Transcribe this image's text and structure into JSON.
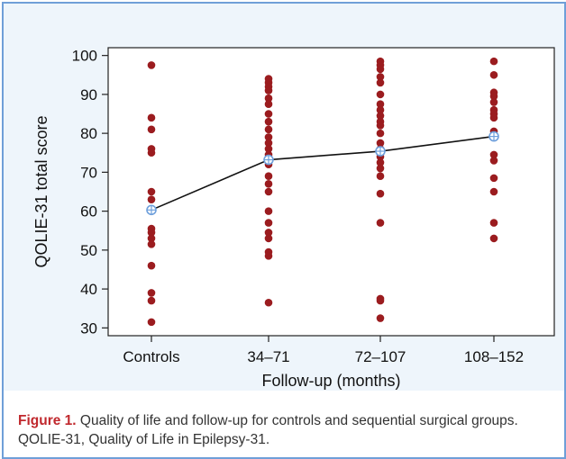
{
  "chart_data": {
    "type": "scatter",
    "title": "",
    "xlabel": "Follow-up (months)",
    "ylabel": "QOLIE-31 total score",
    "categories": [
      "Controls",
      "34–71",
      "72–107",
      "108–152"
    ],
    "ylim": [
      28,
      102
    ],
    "yticks": [
      30,
      40,
      50,
      60,
      70,
      80,
      90,
      100
    ],
    "grid": false,
    "legend": "none",
    "series": [
      {
        "kind": "points",
        "color": "#9b1c1f",
        "values": [
          [
            97.5,
            84,
            81,
            76,
            75,
            65,
            63,
            60.5,
            60,
            55.5,
            54.5,
            53,
            51.5,
            46,
            39,
            37,
            31.5
          ],
          [
            94,
            93,
            92,
            91,
            89,
            87.5,
            85,
            83,
            81,
            79,
            77.5,
            76,
            74.5,
            73,
            72,
            69,
            67,
            65,
            60,
            57,
            54.5,
            53,
            49.5,
            48.5,
            36.5
          ],
          [
            98.5,
            97.5,
            96.5,
            94.5,
            93,
            90,
            87.5,
            86,
            84.5,
            83,
            82,
            80,
            77.5,
            76,
            74,
            72.5,
            71,
            69,
            64.5,
            57,
            37.5,
            37,
            32.5
          ],
          [
            98.5,
            95,
            90.5,
            89.5,
            88,
            86,
            85,
            84,
            80.5,
            74.5,
            73,
            68.5,
            65,
            57,
            53
          ]
        ]
      },
      {
        "kind": "mean-line",
        "color": "#111111",
        "marker_color": "#6fa0dc",
        "values": [
          60.3,
          73.2,
          75.4,
          79.2
        ]
      }
    ]
  },
  "caption": {
    "label": "Figure 1.",
    "text": "Quality of life and follow-up for controls and sequential surgical groups. QOLIE-31, Quality of Life in Epilepsy-31."
  }
}
